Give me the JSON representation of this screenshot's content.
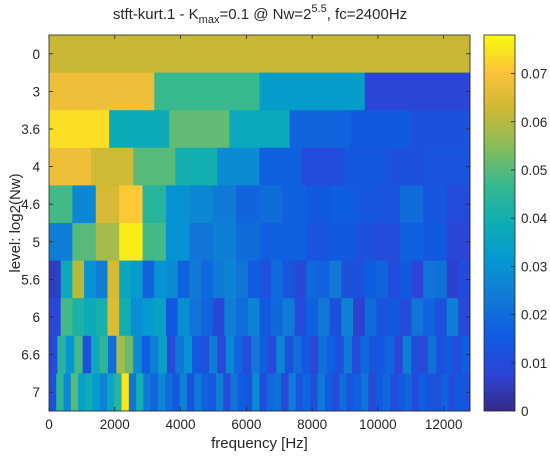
{
  "chart_data": {
    "type": "heatmap",
    "title_parts": {
      "prefix": "stft-kurt.1 - K",
      "kmax_sub": "max",
      "mid": "=0.1 @ Nw=2",
      "nw_sup": "5.5",
      "suffix": ", fc=2400Hz"
    },
    "xlabel": "frequency [Hz]",
    "ylabel": "level: log2(Nw)",
    "xlim": [
      0,
      12800
    ],
    "x_ticks": [
      0,
      2000,
      4000,
      6000,
      8000,
      10000,
      12000
    ],
    "x_tick_labels": [
      "0",
      "2000",
      "4000",
      "6000",
      "8000",
      "10000",
      "12000"
    ],
    "y_tick_labels": [
      "0",
      "3",
      "3.6",
      "4",
      "4.6",
      "5",
      "5.6",
      "6",
      "6.6",
      "7"
    ],
    "colorbar": {
      "range": [
        0,
        0.078
      ],
      "ticks": [
        0,
        0.01,
        0.02,
        0.03,
        0.04,
        0.05,
        0.06,
        0.07
      ],
      "tick_labels": [
        "0",
        "0.01",
        "0.02",
        "0.03",
        "0.04",
        "0.05",
        "0.06",
        "0.07"
      ],
      "colormap": "parula"
    },
    "rows": [
      {
        "level": "0",
        "values": [
          0.062
        ]
      },
      {
        "level": "3",
        "values": [
          0.068,
          0.047,
          0.033,
          0.008
        ]
      },
      {
        "level": "3.6",
        "values": [
          0.074,
          0.038,
          0.051,
          0.037,
          0.018,
          0.015,
          0.012
        ]
      },
      {
        "level": "4",
        "values": [
          0.068,
          0.063,
          0.05,
          0.04,
          0.028,
          0.017,
          0.01,
          0.014,
          0.012,
          0.013
        ]
      },
      {
        "level": "4.6",
        "values": [
          0.048,
          0.027,
          0.064,
          0.071,
          0.044,
          0.03,
          0.027,
          0.024,
          0.018,
          0.02,
          0.017,
          0.015,
          0.016,
          0.014,
          0.013,
          0.02,
          0.014,
          0.01
        ]
      },
      {
        "level": "5",
        "values": [
          0.025,
          0.05,
          0.058,
          0.076,
          0.048,
          0.03,
          0.022,
          0.025,
          0.02,
          0.017,
          0.017,
          0.013,
          0.015,
          0.012,
          0.01,
          0.017,
          0.015,
          0.008
        ]
      },
      {
        "level": "5.6",
        "values": [
          0.006,
          0.037,
          0.06,
          0.03,
          0.025,
          0.064,
          0.036,
          0.032,
          0.018,
          0.03,
          0.028,
          0.017,
          0.024,
          0.019,
          0.024,
          0.026,
          0.022,
          0.016,
          0.012,
          0.02,
          0.013,
          0.009,
          0.019,
          0.018,
          0.023,
          0.012,
          0.012,
          0.016,
          0.018,
          0.011,
          0.015,
          0.008,
          0.022,
          0.021,
          0.007,
          0.01
        ]
      },
      {
        "level": "6",
        "values": [
          0.008,
          0.048,
          0.042,
          0.038,
          0.041,
          0.065,
          0.04,
          0.029,
          0.032,
          0.035,
          0.015,
          0.029,
          0.022,
          0.018,
          0.009,
          0.025,
          0.02,
          0.026,
          0.015,
          0.019,
          0.024,
          0.01,
          0.017,
          0.023,
          0.012,
          0.026,
          0.007,
          0.02,
          0.013,
          0.015,
          0.01,
          0.022,
          0.018,
          0.012,
          0.025,
          0.009
        ]
      },
      {
        "level": "6.6",
        "values": [
          0.01,
          0.044,
          0.031,
          0.048,
          0.012,
          0.037,
          0.045,
          0.02,
          0.058,
          0.052,
          0.028,
          0.016,
          0.025,
          0.034,
          0.01,
          0.022,
          0.03,
          0.014,
          0.012,
          0.024,
          0.009,
          0.027,
          0.018,
          0.01,
          0.023,
          0.016,
          0.009,
          0.026,
          0.012,
          0.02,
          0.015,
          0.009,
          0.021,
          0.017,
          0.012,
          0.024,
          0.01,
          0.019,
          0.013,
          0.015,
          0.018,
          0.008,
          0.025,
          0.011,
          0.009,
          0.021,
          0.012,
          0.015,
          0.01,
          0.016
        ]
      },
      {
        "level": "7",
        "values": [
          0.012,
          0.045,
          0.028,
          0.05,
          0.034,
          0.039,
          0.032,
          0.026,
          0.036,
          0.044,
          0.075,
          0.022,
          0.04,
          0.024,
          0.018,
          0.027,
          0.02,
          0.015,
          0.026,
          0.012,
          0.023,
          0.017,
          0.014,
          0.025,
          0.01,
          0.022,
          0.016,
          0.013,
          0.028,
          0.011,
          0.019,
          0.021,
          0.009,
          0.024,
          0.014,
          0.018,
          0.012,
          0.023,
          0.016,
          0.01,
          0.02,
          0.013,
          0.017,
          0.022,
          0.009,
          0.015,
          0.019,
          0.011,
          0.014,
          0.018,
          0.01,
          0.016,
          0.013,
          0.012,
          0.017,
          0.011,
          0.015,
          0.012
        ]
      }
    ]
  }
}
